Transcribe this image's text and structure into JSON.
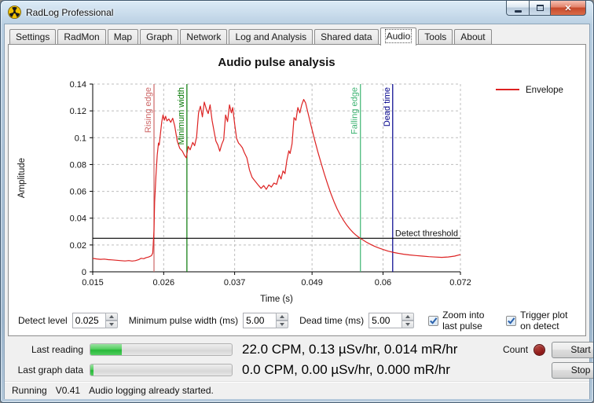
{
  "window": {
    "title": "RadLog Professional"
  },
  "tabs": {
    "active": "Audio",
    "items": [
      {
        "label": "Settings"
      },
      {
        "label": "RadMon"
      },
      {
        "label": "Map"
      },
      {
        "label": "Graph"
      },
      {
        "label": "Network"
      },
      {
        "label": "Log and Analysis"
      },
      {
        "label": "Shared data"
      },
      {
        "label": "Audio"
      },
      {
        "label": "Tools"
      },
      {
        "label": "About"
      }
    ]
  },
  "chart_data": {
    "type": "line",
    "title": "Audio pulse analysis",
    "xlabel": "Time (s)",
    "ylabel": "Amplitude",
    "xlim": [
      0.015,
      0.072
    ],
    "ylim": [
      0,
      0.14
    ],
    "xticks": [
      0.015,
      0.026,
      0.037,
      0.049,
      0.06,
      0.072
    ],
    "xtick_labels": [
      "0.015",
      "0.026",
      "0.037",
      "0.049",
      "0.06",
      "0.072"
    ],
    "yticks": [
      0,
      0.02,
      0.04,
      0.06,
      0.08,
      0.1,
      0.12,
      0.14
    ],
    "ytick_labels": [
      "0",
      "0.02",
      "0.04",
      "0.06",
      "0.08",
      "0.1",
      "0.12",
      "0.14"
    ],
    "grid": true,
    "legend": {
      "position": "top-right",
      "entries": [
        {
          "label": "Envelope",
          "color": "#dd2222"
        }
      ]
    },
    "annotations": {
      "vlines": [
        {
          "label": "Rising edge",
          "time": 0.0245,
          "color": "#cd6666"
        },
        {
          "label": "Minimum width",
          "time": 0.0296,
          "color": "#067806"
        },
        {
          "label": "Falling edge",
          "time": 0.0565,
          "color": "#3cb371"
        },
        {
          "label": "Dead time",
          "time": 0.0615,
          "color": "#00008b"
        }
      ],
      "hline": {
        "label": "Detect threshold",
        "value": 0.025,
        "color": "#000000"
      }
    },
    "series": [
      {
        "name": "Envelope",
        "color": "#dd2222",
        "points": [
          [
            0.015,
            0.01
          ],
          [
            0.0156,
            0.0096
          ],
          [
            0.0162,
            0.0093
          ],
          [
            0.0168,
            0.0095
          ],
          [
            0.0174,
            0.0091
          ],
          [
            0.018,
            0.0089
          ],
          [
            0.0187,
            0.0086
          ],
          [
            0.0194,
            0.0083
          ],
          [
            0.02,
            0.0081
          ],
          [
            0.0206,
            0.0084
          ],
          [
            0.0211,
            0.008
          ],
          [
            0.0216,
            0.0083
          ],
          [
            0.0221,
            0.009
          ],
          [
            0.0225,
            0.0101
          ],
          [
            0.0229,
            0.0098
          ],
          [
            0.0233,
            0.0106
          ],
          [
            0.0237,
            0.0111
          ],
          [
            0.0241,
            0.012
          ],
          [
            0.0243,
            0.014
          ],
          [
            0.0245,
            0.031
          ],
          [
            0.0246,
            0.052
          ],
          [
            0.0248,
            0.072
          ],
          [
            0.025,
            0.087
          ],
          [
            0.0252,
            0.096
          ],
          [
            0.0253,
            0.0945
          ],
          [
            0.0255,
            0.103
          ],
          [
            0.0257,
            0.112
          ],
          [
            0.0259,
            0.117
          ],
          [
            0.0261,
            0.113
          ],
          [
            0.0263,
            0.116
          ],
          [
            0.0265,
            0.1125
          ],
          [
            0.0268,
            0.114
          ],
          [
            0.0271,
            0.1115
          ],
          [
            0.0274,
            0.1145
          ],
          [
            0.0277,
            0.109
          ],
          [
            0.0281,
            0.0975
          ],
          [
            0.0285,
            0.092
          ],
          [
            0.0289,
            0.09
          ],
          [
            0.0292,
            0.087
          ],
          [
            0.0295,
            0.085
          ],
          [
            0.0298,
            0.0935
          ],
          [
            0.0301,
            0.091
          ],
          [
            0.0305,
            0.0965
          ],
          [
            0.0308,
            0.094
          ],
          [
            0.0311,
            0.1005
          ],
          [
            0.0314,
            0.1185
          ],
          [
            0.0317,
            0.1235
          ],
          [
            0.032,
            0.1155
          ],
          [
            0.0323,
            0.1265
          ],
          [
            0.0326,
            0.1215
          ],
          [
            0.0329,
            0.118
          ],
          [
            0.0332,
            0.1245
          ],
          [
            0.0335,
            0.113
          ],
          [
            0.0338,
            0.105
          ],
          [
            0.0341,
            0.0975
          ],
          [
            0.0344,
            0.0945
          ],
          [
            0.0347,
            0.09
          ],
          [
            0.035,
            0.095
          ],
          [
            0.0353,
            0.0985
          ],
          [
            0.0356,
            0.117
          ],
          [
            0.0359,
            0.112
          ],
          [
            0.0362,
            0.1245
          ],
          [
            0.0365,
            0.1185
          ],
          [
            0.0367,
            0.1225
          ],
          [
            0.037,
            0.1105
          ],
          [
            0.0373,
            0.0995
          ],
          [
            0.0376,
            0.096
          ],
          [
            0.0379,
            0.0945
          ],
          [
            0.0382,
            0.0925
          ],
          [
            0.0385,
            0.089
          ],
          [
            0.0389,
            0.085
          ],
          [
            0.0393,
            0.076
          ],
          [
            0.0397,
            0.0705
          ],
          [
            0.0401,
            0.068
          ],
          [
            0.0406,
            0.065
          ],
          [
            0.0411,
            0.0622
          ],
          [
            0.0415,
            0.0643
          ],
          [
            0.0419,
            0.0615
          ],
          [
            0.0423,
            0.0648
          ],
          [
            0.0427,
            0.0632
          ],
          [
            0.0431,
            0.0662
          ],
          [
            0.0435,
            0.0652
          ],
          [
            0.0439,
            0.0722
          ],
          [
            0.0442,
            0.0692
          ],
          [
            0.0445,
            0.0752
          ],
          [
            0.0448,
            0.0732
          ],
          [
            0.0451,
            0.0832
          ],
          [
            0.0454,
            0.0902
          ],
          [
            0.0456,
            0.0882
          ],
          [
            0.0459,
            0.0955
          ],
          [
            0.0462,
            0.115
          ],
          [
            0.0465,
            0.113
          ],
          [
            0.0468,
            0.1225
          ],
          [
            0.0471,
            0.1185
          ],
          [
            0.0474,
            0.1245
          ],
          [
            0.0477,
            0.1285
          ],
          [
            0.048,
            0.126
          ],
          [
            0.0484,
            0.118
          ],
          [
            0.0489,
            0.108
          ],
          [
            0.0494,
            0.0985
          ],
          [
            0.0499,
            0.0895
          ],
          [
            0.0504,
            0.081
          ],
          [
            0.0509,
            0.073
          ],
          [
            0.0514,
            0.0655
          ],
          [
            0.0519,
            0.0585
          ],
          [
            0.0524,
            0.0523
          ],
          [
            0.0529,
            0.0468
          ],
          [
            0.0534,
            0.0422
          ],
          [
            0.0539,
            0.0382
          ],
          [
            0.0544,
            0.0347
          ],
          [
            0.0549,
            0.0317
          ],
          [
            0.0554,
            0.0291
          ],
          [
            0.0559,
            0.027
          ],
          [
            0.0564,
            0.0252
          ],
          [
            0.0569,
            0.0237
          ],
          [
            0.0574,
            0.0222
          ],
          [
            0.058,
            0.0206
          ],
          [
            0.0587,
            0.019
          ],
          [
            0.0594,
            0.0177
          ],
          [
            0.0601,
            0.0165
          ],
          [
            0.0608,
            0.0154
          ],
          [
            0.0615,
            0.0146
          ],
          [
            0.0623,
            0.0138
          ],
          [
            0.0632,
            0.0131
          ],
          [
            0.0641,
            0.0126
          ],
          [
            0.0651,
            0.0121
          ],
          [
            0.0661,
            0.0117
          ],
          [
            0.0671,
            0.0113
          ],
          [
            0.0681,
            0.011
          ],
          [
            0.0691,
            0.0108
          ],
          [
            0.0701,
            0.0111
          ],
          [
            0.0711,
            0.0117
          ],
          [
            0.072,
            0.0128
          ]
        ]
      }
    ]
  },
  "controls": {
    "detect_level": {
      "label": "Detect level",
      "value": "0.025"
    },
    "min_pulse_width": {
      "label": "Minimum pulse width (ms)",
      "value": "5.00"
    },
    "dead_time": {
      "label": "Dead time (ms)",
      "value": "5.00"
    },
    "checkboxes": [
      {
        "label": "Zoom into last pulse",
        "checked": true
      },
      {
        "label": "Trigger plot on detect",
        "checked": true
      }
    ]
  },
  "gauges": {
    "rows": [
      {
        "label": "Last reading",
        "progress_pct": 22,
        "reading": "22.0 CPM, 0.13 µSv/hr, 0.014 mR/hr"
      },
      {
        "label": "Last graph data",
        "progress_pct": 2,
        "reading": "0.0 CPM, 0.00 µSv/hr, 0.000 mR/hr"
      }
    ],
    "count_label": "Count",
    "led_color": "#8b1616",
    "start_label": "Start",
    "stop_label": "Stop"
  },
  "status": {
    "state": "Running",
    "version": "V0.41",
    "message": "Audio logging already started."
  }
}
